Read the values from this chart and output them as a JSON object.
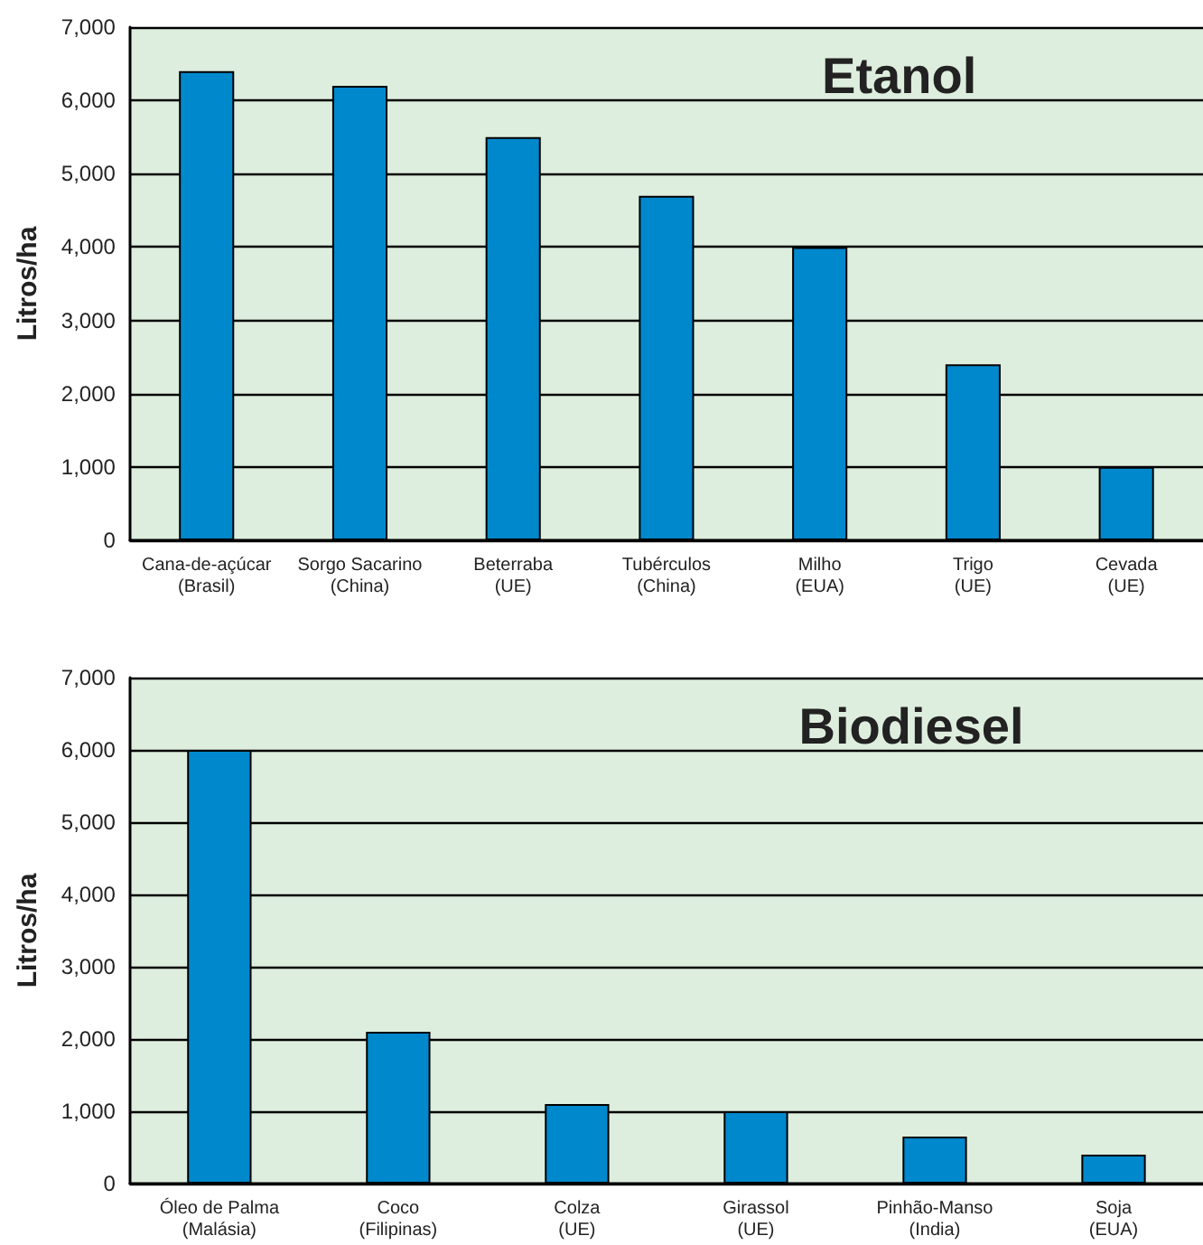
{
  "chart_data": [
    {
      "type": "bar",
      "title": "Etanol",
      "ylabel": "Litros/ha",
      "categories": [
        "Cana-de-açúcar\n(Brasil)",
        "Sorgo Sacarino\n(China)",
        "Beterraba\n(UE)",
        "Tubérculos\n(China)",
        "Milho\n(EUA)",
        "Trigo\n(UE)",
        "Cevada\n(UE)"
      ],
      "values": [
        6400,
        6200,
        5500,
        4700,
        4000,
        2400,
        1000
      ],
      "color": "#0088cc",
      "ylim": [
        0,
        7000
      ],
      "yticks": [
        0,
        {
          "value": 1000,
          "label": "1,000"
        },
        {
          "value": 2000,
          "label": "2,000"
        },
        {
          "value": 3000,
          "label": "3,000"
        },
        {
          "value": 4000,
          "label": "4,000"
        },
        {
          "value": 5000,
          "label": "5,000"
        },
        {
          "value": 6000,
          "label": "6,000"
        },
        {
          "value": 7000,
          "label": "7,000"
        }
      ],
      "grid": "y"
    },
    {
      "type": "bar",
      "title": "Biodiesel",
      "ylabel": "Litros/ha",
      "categories": [
        "Óleo de Palma\n(Malásia)",
        "Coco\n(Filipinas)",
        "Colza\n(UE)",
        "Girassol\n(UE)",
        "Pinhão-Manso\n(India)",
        "Soja\n(EUA)"
      ],
      "values": [
        6000,
        2100,
        1100,
        1000,
        650,
        400
      ],
      "color": "#0088cc",
      "ylim": [
        0,
        7000
      ],
      "yticks": [
        0,
        {
          "value": 1000,
          "label": "1,000"
        },
        {
          "value": 2000,
          "label": "2,000"
        },
        {
          "value": 3000,
          "label": "3,000"
        },
        {
          "value": 4000,
          "label": "4,000"
        },
        {
          "value": 5000,
          "label": "5,000"
        },
        {
          "value": 6000,
          "label": "6,000"
        },
        {
          "value": 7000,
          "label": "7,000"
        }
      ],
      "grid": "y"
    }
  ]
}
